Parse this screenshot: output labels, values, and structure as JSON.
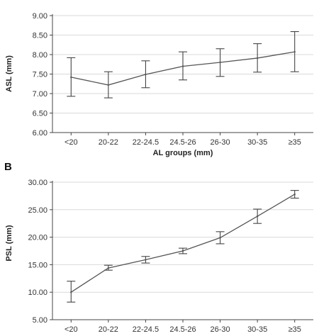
{
  "chart_data": [
    {
      "panel": "",
      "type": "line",
      "categories": [
        "<20",
        "20-22",
        "22-24.5",
        "24.5-26",
        "26-30",
        "30-35",
        "≥35"
      ],
      "series": [
        {
          "values": [
            7.42,
            7.22,
            7.49,
            7.7,
            7.8,
            7.91,
            8.07
          ],
          "err_low": [
            6.93,
            6.89,
            7.15,
            7.35,
            7.44,
            7.55,
            7.56
          ],
          "err_high": [
            7.92,
            7.56,
            7.84,
            8.07,
            8.15,
            8.28,
            8.59
          ]
        }
      ],
      "xlabel": "AL groups (mm)",
      "ylabel": "ASL (mm)",
      "ylim": [
        6.0,
        9.0
      ],
      "yticks": [
        "6.00",
        "6.50",
        "7.00",
        "7.50",
        "8.00",
        "8.50",
        "9.00"
      ],
      "grid": "horizontal"
    },
    {
      "panel": "B",
      "type": "line",
      "categories": [
        "<20",
        "20-22",
        "22-24.5",
        "24.5-26",
        "26-30",
        "30-35",
        "≥35"
      ],
      "series": [
        {
          "values": [
            10.0,
            14.4,
            15.9,
            17.5,
            19.9,
            23.8,
            27.8
          ],
          "err_low": [
            8.2,
            14.0,
            15.3,
            17.0,
            18.8,
            22.5,
            27.1
          ],
          "err_high": [
            12.0,
            14.9,
            16.5,
            18.0,
            21.0,
            25.1,
            28.5
          ]
        }
      ],
      "xlabel": "",
      "ylabel": "PSL  (mm)",
      "ylim": [
        5.0,
        30.0
      ],
      "yticks": [
        "5.00",
        "10.00",
        "15.00",
        "20.00",
        "25.00",
        "30.00"
      ],
      "grid": "horizontal"
    }
  ]
}
